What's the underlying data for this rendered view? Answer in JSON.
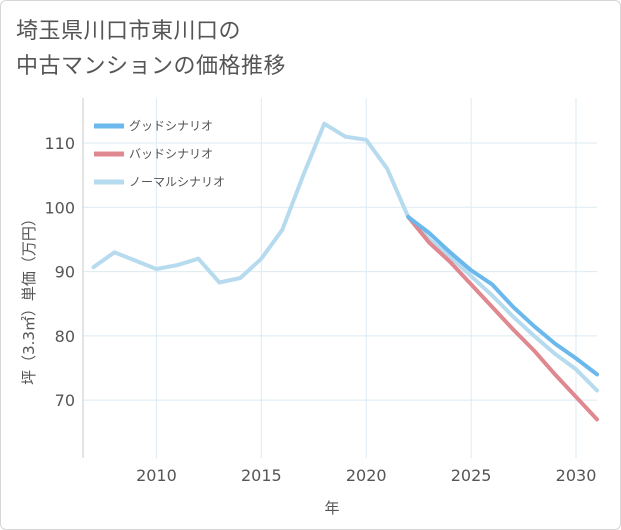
{
  "title_lines": [
    "埼玉県川口市東川口の",
    "中古マンションの価格推移"
  ],
  "chart_data": {
    "type": "line",
    "title": "埼玉県川口市東川口の中古マンションの価格推移",
    "xlabel": "年",
    "ylabel": "坪（3.3㎡）単価（万円）",
    "xlim": [
      2006.5,
      2031
    ],
    "ylim": [
      61,
      117
    ],
    "xticks": [
      2010,
      2015,
      2020,
      2025,
      2030
    ],
    "yticks": [
      70,
      80,
      90,
      100,
      110
    ],
    "grid": true,
    "legend_position": "top-left",
    "series": [
      {
        "name": "グッドシナリオ",
        "color": "#6ab8ec",
        "x": [
          2022,
          2023,
          2024,
          2025,
          2026,
          2027,
          2028,
          2029,
          2030,
          2031
        ],
        "y": [
          98.5,
          96.0,
          93.0,
          90.2,
          88.0,
          84.5,
          81.5,
          78.8,
          76.5,
          74.0
        ]
      },
      {
        "name": "バッドシナリオ",
        "color": "#e08890",
        "x": [
          2022,
          2023,
          2024,
          2025,
          2026,
          2027,
          2028,
          2029,
          2030,
          2031
        ],
        "y": [
          98.5,
          94.5,
          91.5,
          88.0,
          84.5,
          81.0,
          77.7,
          74.0,
          70.5,
          67.0
        ]
      },
      {
        "name": "ノーマルシナリオ",
        "color": "#b7dbee",
        "x": [
          2007,
          2008,
          2009,
          2010,
          2011,
          2012,
          2013,
          2014,
          2015,
          2016,
          2017,
          2018,
          2019,
          2020,
          2021,
          2022,
          2023,
          2024,
          2025,
          2026,
          2027,
          2028,
          2029,
          2030,
          2031
        ],
        "y": [
          90.7,
          93.0,
          91.7,
          90.4,
          91.0,
          92.0,
          88.3,
          89.0,
          92.0,
          96.5,
          105.0,
          113.0,
          111.0,
          110.5,
          106.0,
          98.5,
          95.0,
          92.3,
          89.3,
          86.3,
          83.0,
          80.0,
          77.2,
          74.8,
          71.5
        ]
      }
    ]
  }
}
